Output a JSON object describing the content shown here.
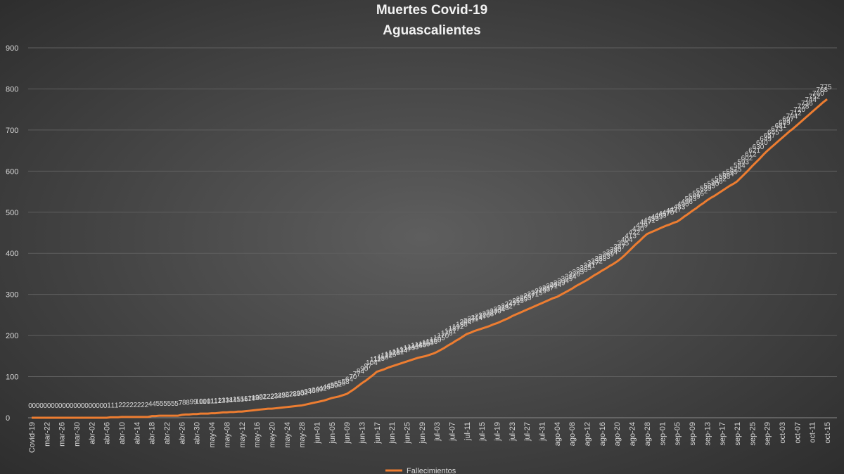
{
  "chart_data": {
    "type": "line",
    "title": "Muertes Covid-19",
    "subtitle": "Aguascalientes",
    "categories": [
      "Covid-19",
      null,
      null,
      null,
      "mar-22",
      null,
      null,
      null,
      "mar-26",
      null,
      null,
      null,
      "mar-30",
      null,
      null,
      null,
      "abr-02",
      null,
      null,
      null,
      "abr-06",
      null,
      null,
      null,
      "abr-10",
      null,
      null,
      null,
      "abr-14",
      null,
      null,
      null,
      "abr-18",
      null,
      null,
      null,
      "abr-22",
      null,
      null,
      null,
      "abr-26",
      null,
      null,
      null,
      "abr-30",
      null,
      null,
      null,
      "may-04",
      null,
      null,
      null,
      "may-08",
      null,
      null,
      null,
      "may-12",
      null,
      null,
      null,
      "may-16",
      null,
      null,
      null,
      "may-20",
      null,
      null,
      null,
      "may-24",
      null,
      null,
      null,
      "may-28",
      null,
      null,
      null,
      "jun-01",
      null,
      null,
      null,
      "jun-05",
      null,
      null,
      null,
      "jun-09",
      null,
      null,
      null,
      "jun-13",
      null,
      null,
      null,
      "jun-17",
      null,
      null,
      null,
      "jun-21",
      null,
      null,
      null,
      "jun-25",
      null,
      null,
      null,
      "jun-29",
      null,
      null,
      null,
      "jul-03",
      null,
      null,
      null,
      "jul-07",
      null,
      null,
      null,
      "jul-11",
      null,
      null,
      null,
      "jul-15",
      null,
      null,
      null,
      "jul-19",
      null,
      null,
      null,
      "jul-23",
      null,
      null,
      null,
      "jul-27",
      null,
      null,
      null,
      "jul-31",
      null,
      null,
      null,
      "ago-04",
      null,
      null,
      null,
      "ago-08",
      null,
      null,
      null,
      "ago-12",
      null,
      null,
      null,
      "ago-16",
      null,
      null,
      null,
      "ago-20",
      null,
      null,
      null,
      "ago-24",
      null,
      null,
      null,
      "ago-28",
      null,
      null,
      null,
      "sep-01",
      null,
      null,
      null,
      "sep-05",
      null,
      null,
      null,
      "sep-09",
      null,
      null,
      null,
      "sep-13",
      null,
      null,
      null,
      "sep-17",
      null,
      null,
      null,
      "sep-21",
      null,
      null,
      null,
      "sep-25",
      null,
      null,
      null,
      "sep-29",
      null,
      null,
      null,
      "oct-03",
      null,
      null,
      null,
      "oct-07",
      null,
      null,
      null,
      "oct-11",
      null,
      null,
      null,
      "oct-15"
    ],
    "series": [
      {
        "name": "Fallecimientos",
        "color": "#ed7d31",
        "values": [
          0,
          0,
          0,
          0,
          0,
          0,
          0,
          0,
          0,
          0,
          0,
          0,
          0,
          0,
          0,
          0,
          0,
          0,
          0,
          0,
          0,
          1,
          1,
          1,
          2,
          2,
          2,
          2,
          2,
          2,
          2,
          2,
          4,
          4,
          5,
          5,
          5,
          5,
          5,
          5,
          7,
          8,
          8,
          9,
          9,
          10,
          10,
          10,
          11,
          11,
          12,
          13,
          13,
          14,
          14,
          15,
          15,
          16,
          17,
          18,
          19,
          20,
          21,
          22,
          22,
          23,
          24,
          25,
          26,
          27,
          28,
          29,
          30,
          32,
          34,
          36,
          38,
          40,
          42,
          45,
          48,
          50,
          52,
          55,
          58,
          64,
          70,
          77,
          84,
          90,
          97,
          104,
          112,
          115,
          118,
          122,
          125,
          128,
          131,
          134,
          137,
          140,
          143,
          146,
          148,
          150,
          153,
          156,
          160,
          165,
          170,
          176,
          181,
          187,
          192,
          198,
          204,
          207,
          211,
          214,
          217,
          220,
          223,
          227,
          230,
          234,
          238,
          242,
          247,
          251,
          255,
          259,
          263,
          267,
          271,
          275,
          279,
          283,
          287,
          291,
          294,
          299,
          304,
          309,
          314,
          320,
          325,
          330,
          335,
          341,
          347,
          352,
          358,
          363,
          369,
          374,
          380,
          387,
          395,
          404,
          413,
          422,
          430,
          439,
          447,
          451,
          455,
          459,
          463,
          467,
          470,
          474,
          477,
          483,
          490,
          496,
          503,
          509,
          516,
          522,
          529,
          535,
          540,
          546,
          552,
          558,
          564,
          569,
          575,
          584,
          593,
          602,
          612,
          621,
          630,
          640,
          649,
          657,
          665,
          673,
          681,
          689,
          697,
          704,
          712,
          720,
          728,
          736,
          744,
          752,
          760,
          768,
          775
        ]
      }
    ],
    "ylim": [
      0,
      900
    ],
    "yticks": [
      0,
      100,
      200,
      300,
      400,
      500,
      600,
      700,
      800,
      900
    ],
    "grid": true,
    "legend": "bottom",
    "data_labels": true
  }
}
